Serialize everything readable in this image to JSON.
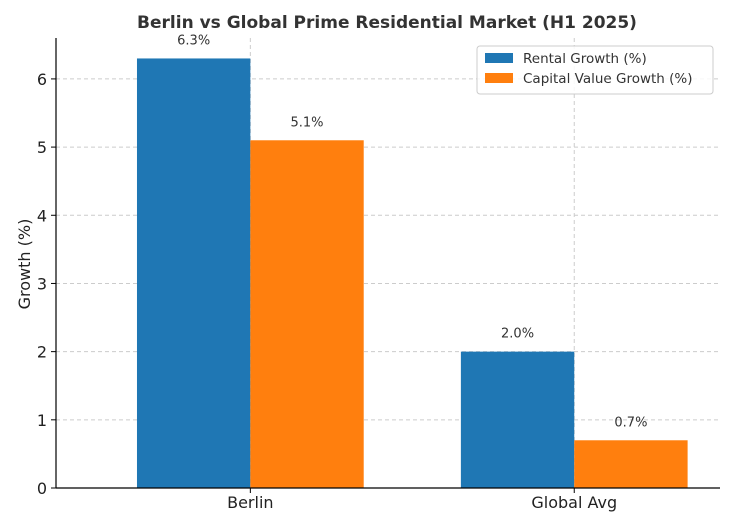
{
  "chart_data": {
    "type": "bar",
    "title": "Berlin vs Global Prime Residential Market (H1 2025)",
    "xlabel": "",
    "ylabel": "Growth (%)",
    "categories": [
      "Berlin",
      "Global Avg"
    ],
    "series": [
      {
        "name": "Rental Growth (%)",
        "color": "#1f77b4",
        "values": [
          6.3,
          2.0
        ],
        "labels": [
          "6.3%",
          "2.0%"
        ]
      },
      {
        "name": "Capital Value Growth (%)",
        "color": "#ff7f0e",
        "values": [
          5.1,
          0.7
        ],
        "labels": [
          "5.1%",
          "0.7%"
        ]
      }
    ],
    "ylim": [
      0,
      6.6
    ],
    "yticks": [
      0,
      1,
      2,
      3,
      4,
      5,
      6
    ],
    "grid": true,
    "legend_position": "top-right"
  }
}
